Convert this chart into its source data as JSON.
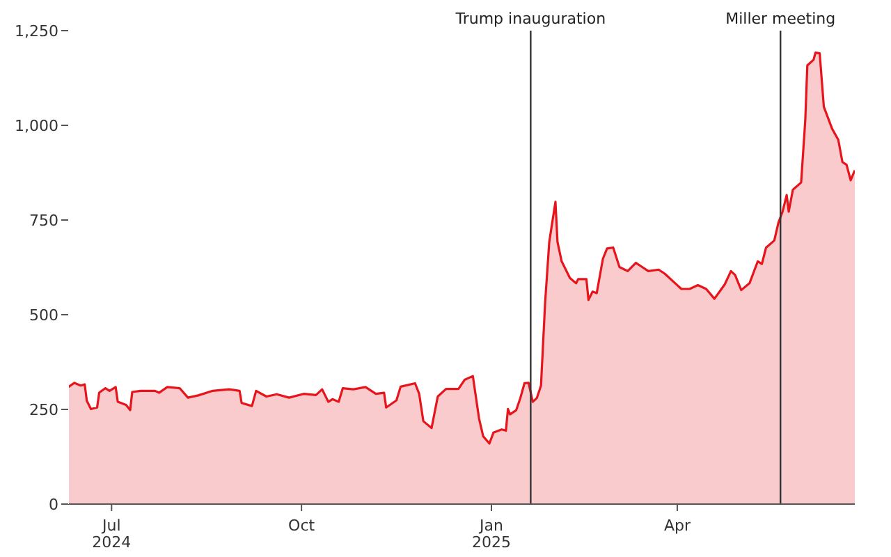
{
  "chart_data": {
    "type": "area",
    "x": [
      "2024-06-10",
      "2024-06-13",
      "2024-06-16",
      "2024-06-18",
      "2024-06-19",
      "2024-06-21",
      "2024-06-24",
      "2024-06-25",
      "2024-06-28",
      "2024-06-30",
      "2024-07-03",
      "2024-07-04",
      "2024-07-08",
      "2024-07-10",
      "2024-07-11",
      "2024-07-15",
      "2024-07-22",
      "2024-07-24",
      "2024-07-28",
      "2024-08-03",
      "2024-08-07",
      "2024-08-12",
      "2024-08-19",
      "2024-08-27",
      "2024-09-01",
      "2024-09-02",
      "2024-09-07",
      "2024-09-09",
      "2024-09-14",
      "2024-09-19",
      "2024-09-25",
      "2024-10-02",
      "2024-10-08",
      "2024-10-11",
      "2024-10-14",
      "2024-10-16",
      "2024-10-19",
      "2024-10-21",
      "2024-10-26",
      "2024-11-01",
      "2024-11-06",
      "2024-11-10",
      "2024-11-11",
      "2024-11-16",
      "2024-11-18",
      "2024-11-25",
      "2024-11-27",
      "2024-11-29",
      "2024-12-03",
      "2024-12-06",
      "2024-12-10",
      "2024-12-16",
      "2024-12-19",
      "2024-12-23",
      "2024-12-26",
      "2024-12-28",
      "2024-12-31",
      "2025-01-02",
      "2025-01-06",
      "2025-01-08",
      "2025-01-09",
      "2025-01-10",
      "2025-01-13",
      "2025-01-15",
      "2025-01-17",
      "2025-01-19",
      "2025-01-21",
      "2025-01-23",
      "2025-01-25",
      "2025-01-27",
      "2025-01-29",
      "2025-02-01",
      "2025-02-02",
      "2025-02-04",
      "2025-02-08",
      "2025-02-11",
      "2025-02-12",
      "2025-02-16",
      "2025-02-17",
      "2025-02-19",
      "2025-02-21",
      "2025-02-24",
      "2025-02-26",
      "2025-03-01",
      "2025-03-04",
      "2025-03-08",
      "2025-03-12",
      "2025-03-15",
      "2025-03-18",
      "2025-03-23",
      "2025-03-26",
      "2025-03-31",
      "2025-04-03",
      "2025-04-07",
      "2025-04-11",
      "2025-04-15",
      "2025-04-19",
      "2025-04-24",
      "2025-04-27",
      "2025-04-29",
      "2025-05-02",
      "2025-05-06",
      "2025-05-10",
      "2025-05-12",
      "2025-05-14",
      "2025-05-18",
      "2025-05-20",
      "2025-05-22",
      "2025-05-24",
      "2025-05-25",
      "2025-05-27",
      "2025-05-31",
      "2025-06-02",
      "2025-06-03",
      "2025-06-06",
      "2025-06-07",
      "2025-06-09",
      "2025-06-11",
      "2025-06-13",
      "2025-06-15",
      "2025-06-18",
      "2025-06-20",
      "2025-06-22",
      "2025-06-24",
      "2025-06-26"
    ],
    "series": [
      {
        "color": "#e8141c",
        "values": [
          309,
          320,
          313,
          316,
          273,
          251,
          255,
          294,
          306,
          299,
          309,
          270,
          262,
          248,
          296,
          299,
          299,
          294,
          309,
          306,
          281,
          287,
          299,
          303,
          299,
          267,
          259,
          299,
          284,
          290,
          281,
          291,
          288,
          303,
          270,
          277,
          270,
          306,
          303,
          309,
          291,
          294,
          255,
          274,
          310,
          319,
          291,
          219,
          201,
          284,
          304,
          304,
          328,
          338,
          226,
          179,
          160,
          189,
          197,
          194,
          251,
          237,
          248,
          280,
          319,
          320,
          270,
          280,
          313,
          532,
          692,
          798,
          692,
          641,
          597,
          583,
          594,
          594,
          539,
          561,
          557,
          648,
          675,
          677,
          626,
          615,
          637,
          626,
          615,
          619,
          608,
          583,
          568,
          568,
          578,
          568,
          542,
          580,
          615,
          605,
          565,
          583,
          641,
          634,
          677,
          696,
          743,
          772,
          816,
          772,
          830,
          849,
          1012,
          1158,
          1173,
          1192,
          1190,
          1049,
          1020,
          991,
          962,
          903,
          896,
          855,
          881
        ]
      }
    ],
    "xlim": [
      "2024-06-10",
      "2025-06-26"
    ],
    "xticks": [
      {
        "value": "2024-07-01",
        "label": "Jul\n2024"
      },
      {
        "value": "2024-10-01",
        "label": "Oct"
      },
      {
        "value": "2025-01-01",
        "label": "Jan\n2025"
      },
      {
        "value": "2025-04-01",
        "label": "Apr"
      }
    ],
    "ylim": [
      0,
      1250
    ],
    "yticks": [
      0,
      250,
      500,
      750,
      {
        "value": 1000,
        "label": "1,000"
      },
      {
        "value": 1250,
        "label": "1,250"
      }
    ],
    "ref_lines": [
      {
        "axis": "x",
        "value": "2025-01-20",
        "label": "Trump inauguration",
        "color": "#333333"
      },
      {
        "axis": "x",
        "value": "2025-05-21",
        "label": "Miller meeting",
        "color": "#333333"
      }
    ]
  }
}
